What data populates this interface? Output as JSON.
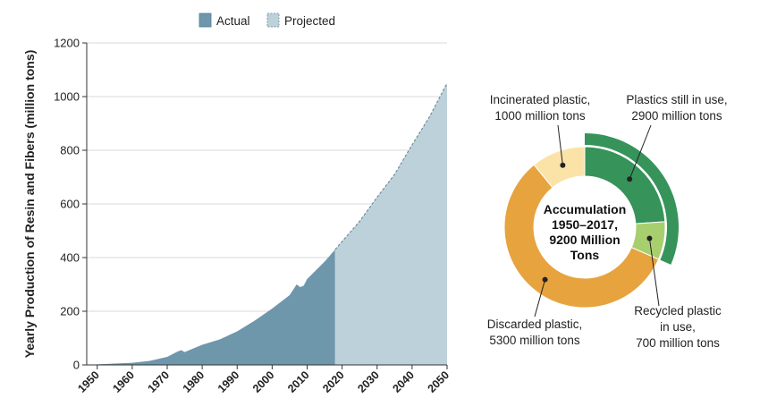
{
  "chart_data": [
    {
      "type": "area",
      "ylabel": "Yearly Production of Resin and Fibers (million tons)",
      "xlabel": "",
      "xlim": [
        1947,
        2050
      ],
      "ylim": [
        0,
        1200
      ],
      "x_ticks": [
        "1950",
        "1960",
        "1970",
        "1980",
        "1990",
        "2000",
        "2010",
        "2020",
        "2030",
        "2040",
        "2050"
      ],
      "y_ticks": [
        "0",
        "200",
        "400",
        "600",
        "800",
        "1000",
        "1200"
      ],
      "grid": true,
      "legend_position": "top-center",
      "series": [
        {
          "name": "Actual",
          "color": "#6e97ab",
          "x": [
            1950,
            1955,
            1960,
            1965,
            1970,
            1973,
            1974,
            1975,
            1980,
            1985,
            1990,
            1995,
            2000,
            2005,
            2007,
            2008,
            2009,
            2010,
            2015,
            2018
          ],
          "values": [
            2,
            5,
            8,
            15,
            30,
            50,
            55,
            48,
            75,
            95,
            125,
            165,
            210,
            260,
            300,
            290,
            295,
            320,
            385,
            430
          ]
        },
        {
          "name": "Projected",
          "color": "#bdd1da",
          "x": [
            2018,
            2020,
            2025,
            2030,
            2035,
            2040,
            2045,
            2050
          ],
          "values": [
            430,
            460,
            535,
            625,
            710,
            820,
            925,
            1050
          ]
        }
      ]
    },
    {
      "type": "pie",
      "center_label": [
        "Accumulation",
        "1950–2017,",
        "9200 Million",
        "Tons"
      ],
      "categories": [
        "Plastics still in use",
        "Recycled plastic in use",
        "Discarded plastic",
        "Incinerated plastic"
      ],
      "values": [
        2200,
        700,
        5300,
        1000
      ],
      "colors": [
        "#36935a",
        "#a8cf6e",
        "#e7a33e",
        "#fbe3a8"
      ],
      "bracket": {
        "label_index": 0,
        "value": 2900,
        "color": "#36935a"
      },
      "annotations": [
        {
          "lines": [
            "Plastics still in use,",
            "2900 million tons"
          ]
        },
        {
          "lines": [
            "Recycled plastic",
            "in use,",
            "700 million tons"
          ]
        },
        {
          "lines": [
            "Discarded plastic,",
            "5300 million tons"
          ]
        },
        {
          "lines": [
            "Incinerated plastic,",
            "1000 million tons"
          ]
        }
      ]
    }
  ]
}
